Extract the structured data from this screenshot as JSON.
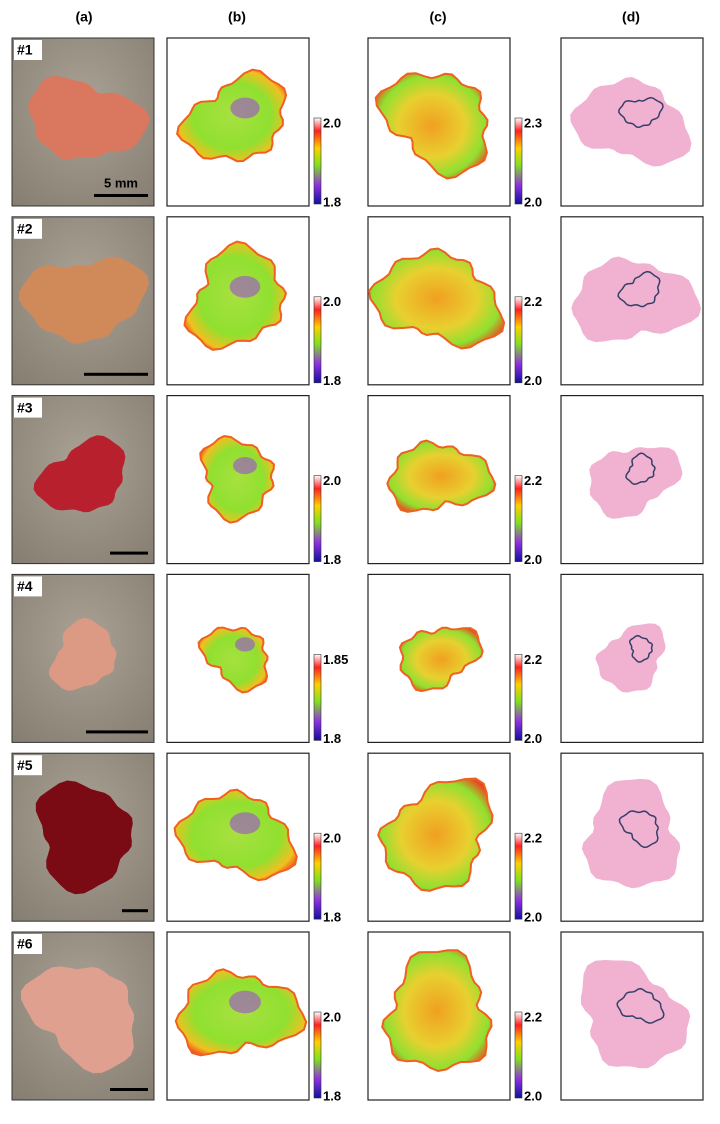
{
  "column_labels": [
    "(a)",
    "(b)",
    "(c)",
    "(d)"
  ],
  "rows": [
    {
      "label": "#1",
      "scale_bar": "5 mm",
      "colorbar_b": [
        "2.0",
        "1.8"
      ],
      "colorbar_c": [
        "2.3",
        "2.0"
      ]
    },
    {
      "label": "#2",
      "colorbar_b": [
        "2.0",
        "1.8"
      ],
      "colorbar_c": [
        "2.2",
        "2.0"
      ]
    },
    {
      "label": "#3",
      "colorbar_b": [
        "2.0",
        "1.8"
      ],
      "colorbar_c": [
        "2.2",
        "2.0"
      ]
    },
    {
      "label": "#4",
      "colorbar_b": [
        "1.85",
        "1.8"
      ],
      "colorbar_c": [
        "2.2",
        "2.0"
      ]
    },
    {
      "label": "#5",
      "colorbar_b": [
        "2.0",
        "1.8"
      ],
      "colorbar_c": [
        "2.2",
        "2.0"
      ]
    },
    {
      "label": "#6",
      "colorbar_b": [
        "2.0",
        "1.8"
      ],
      "colorbar_c": [
        "2.2",
        "2.0"
      ]
    }
  ]
}
